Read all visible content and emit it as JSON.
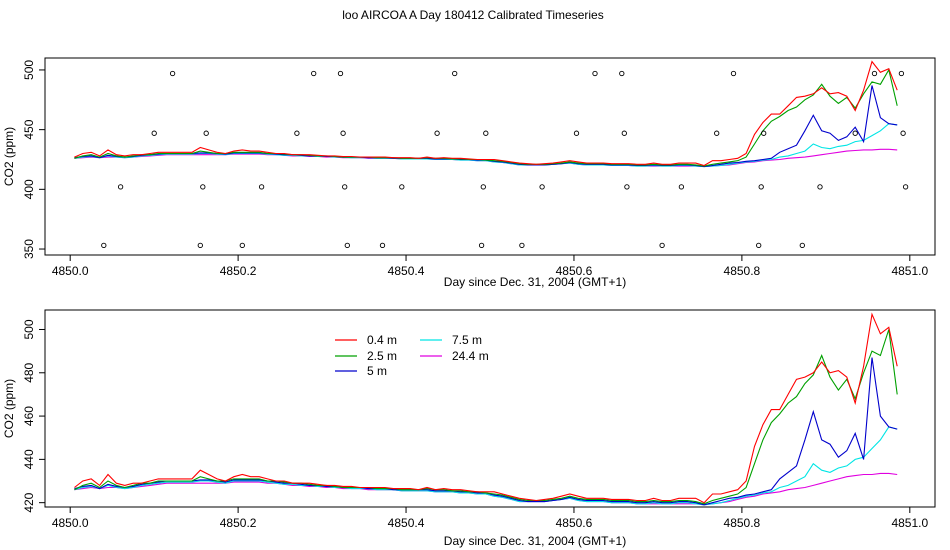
{
  "page": {
    "title": "loo AIRCOA A  Day 180412  Calibrated Timeseries"
  },
  "colors": {
    "0.4 m": "#ff0000",
    "2.5 m": "#00a000",
    "5 m": "#0000cc",
    "7.5 m": "#00e5e5",
    "24.4 m": "#e000e0"
  },
  "chart_data": [
    {
      "type": "line",
      "panel": "top",
      "xlabel": "Day since Dec. 31, 2004 (GMT+1)",
      "ylabel": "CO2 (ppm)",
      "xlim": [
        4849.97,
        4851.03
      ],
      "ylim": [
        345,
        510
      ],
      "xticks": [
        4850.0,
        4850.2,
        4850.4,
        4850.6,
        4850.8,
        4851.0
      ],
      "xtick_labels": [
        "4850.0",
        "4850.2",
        "4850.4",
        "4850.6",
        "4850.8",
        "4851.0"
      ],
      "yticks": [
        350,
        400,
        450,
        500
      ],
      "ytick_labels": [
        "350",
        "400",
        "450",
        "500"
      ],
      "grid": false,
      "legend": "none",
      "x": [
        4850.005,
        4850.015,
        4850.025,
        4850.035,
        4850.045,
        4850.055,
        4850.065,
        4850.075,
        4850.085,
        4850.095,
        4850.105,
        4850.115,
        4850.125,
        4850.135,
        4850.145,
        4850.155,
        4850.165,
        4850.175,
        4850.185,
        4850.195,
        4850.205,
        4850.215,
        4850.225,
        4850.235,
        4850.245,
        4850.255,
        4850.265,
        4850.275,
        4850.285,
        4850.295,
        4850.305,
        4850.315,
        4850.325,
        4850.335,
        4850.345,
        4850.355,
        4850.365,
        4850.375,
        4850.385,
        4850.395,
        4850.405,
        4850.415,
        4850.425,
        4850.435,
        4850.445,
        4850.455,
        4850.465,
        4850.475,
        4850.485,
        4850.495,
        4850.505,
        4850.515,
        4850.525,
        4850.535,
        4850.545,
        4850.555,
        4850.565,
        4850.575,
        4850.585,
        4850.595,
        4850.605,
        4850.615,
        4850.625,
        4850.635,
        4850.645,
        4850.655,
        4850.665,
        4850.675,
        4850.685,
        4850.695,
        4850.705,
        4850.715,
        4850.725,
        4850.735,
        4850.745,
        4850.755,
        4850.765,
        4850.775,
        4850.785,
        4850.795,
        4850.805,
        4850.815,
        4850.825,
        4850.835,
        4850.845,
        4850.855,
        4850.865,
        4850.875,
        4850.885,
        4850.895,
        4850.905,
        4850.915,
        4850.925,
        4850.935,
        4850.945,
        4850.955,
        4850.965,
        4850.975,
        4850.985
      ],
      "series": [
        {
          "name": "0.4 m",
          "values": [
            427.0,
            430.0,
            431.0,
            428.0,
            433.0,
            429.0,
            428.0,
            429.0,
            429.0,
            430.0,
            431.0,
            431.0,
            431.0,
            431.0,
            431.0,
            435.0,
            433.0,
            431.0,
            430.0,
            432.0,
            433.0,
            432.0,
            432.0,
            431.0,
            430.0,
            430.0,
            429.0,
            429.0,
            429.0,
            428.5,
            428.0,
            428.0,
            427.5,
            427.5,
            427.0,
            427.0,
            427.0,
            427.0,
            426.5,
            426.5,
            426.5,
            426.0,
            427.0,
            426.0,
            426.5,
            426.0,
            426.0,
            425.5,
            425.0,
            425.0,
            425.0,
            424.0,
            423.0,
            422.0,
            421.5,
            421.0,
            421.5,
            422.0,
            423.0,
            424.0,
            423.0,
            422.0,
            422.0,
            422.0,
            421.5,
            421.5,
            421.5,
            421.0,
            421.0,
            422.0,
            421.0,
            421.0,
            422.0,
            422.0,
            422.0,
            420.0,
            424.0,
            424.0,
            425.0,
            426.0,
            430.0,
            446.0,
            456.0,
            463.0,
            463.0,
            470.0,
            477.0,
            478.0,
            480.0,
            485.0,
            480.0,
            481.0,
            478.0,
            466.0,
            483.0,
            507.0,
            498.0,
            501.0,
            483.0
          ]
        },
        {
          "name": "2.5 m",
          "values": [
            426.0,
            428.0,
            429.0,
            427.0,
            430.0,
            428.0,
            427.0,
            428.0,
            429.0,
            429.0,
            430.0,
            430.0,
            430.0,
            430.0,
            430.0,
            432.0,
            431.0,
            430.0,
            430.0,
            431.0,
            431.0,
            431.0,
            431.0,
            430.0,
            430.0,
            429.5,
            429.0,
            429.0,
            428.5,
            428.0,
            428.0,
            427.5,
            427.0,
            427.0,
            427.0,
            427.0,
            426.5,
            426.5,
            426.5,
            426.0,
            426.0,
            426.0,
            426.5,
            426.0,
            426.0,
            425.5,
            425.5,
            425.0,
            425.0,
            424.5,
            424.0,
            423.5,
            422.5,
            421.5,
            421.0,
            421.0,
            421.0,
            421.5,
            422.0,
            423.0,
            422.0,
            421.5,
            421.5,
            421.5,
            421.0,
            421.0,
            421.0,
            420.5,
            420.5,
            421.0,
            420.5,
            420.5,
            421.0,
            421.0,
            420.5,
            419.5,
            421.0,
            422.0,
            423.0,
            424.0,
            427.0,
            438.0,
            449.0,
            457.0,
            461.0,
            466.0,
            469.0,
            475.0,
            479.0,
            488.0,
            478.0,
            472.0,
            477.0,
            468.0,
            480.0,
            490.0,
            488.0,
            500.0,
            470.0
          ]
        },
        {
          "name": "5 m",
          "values": [
            426.5,
            427.5,
            428.0,
            426.5,
            428.5,
            427.5,
            427.0,
            427.5,
            428.5,
            429.0,
            429.5,
            430.0,
            430.0,
            430.0,
            430.0,
            430.5,
            430.5,
            430.0,
            429.5,
            430.5,
            430.5,
            430.5,
            430.5,
            430.0,
            429.5,
            429.0,
            429.0,
            428.5,
            428.0,
            428.0,
            427.5,
            427.5,
            427.0,
            427.0,
            427.0,
            426.5,
            426.5,
            426.5,
            426.0,
            426.0,
            426.0,
            426.0,
            426.0,
            425.5,
            425.5,
            425.5,
            425.0,
            425.0,
            424.5,
            424.5,
            423.5,
            423.0,
            422.0,
            421.0,
            420.5,
            420.5,
            420.5,
            421.0,
            421.5,
            422.5,
            421.5,
            421.0,
            421.0,
            421.0,
            420.5,
            420.5,
            420.5,
            420.0,
            420.0,
            420.5,
            420.0,
            420.0,
            420.5,
            420.5,
            420.0,
            419.0,
            420.0,
            421.0,
            422.0,
            422.5,
            423.5,
            424.0,
            425.0,
            426.0,
            431.0,
            434.0,
            437.0,
            449.0,
            462.0,
            449.0,
            447.0,
            441.0,
            444.0,
            452.0,
            440.0,
            487.0,
            460.0,
            455.0,
            454.0
          ]
        },
        {
          "name": "7.5 m",
          "values": [
            426.0,
            427.0,
            427.5,
            426.5,
            428.0,
            427.0,
            426.5,
            427.0,
            428.0,
            428.5,
            429.0,
            429.5,
            429.5,
            429.5,
            429.5,
            430.0,
            430.0,
            429.5,
            429.0,
            430.0,
            430.0,
            430.0,
            430.0,
            429.5,
            429.0,
            428.5,
            428.5,
            428.0,
            428.0,
            427.5,
            427.5,
            427.0,
            427.0,
            426.5,
            426.5,
            426.5,
            426.0,
            426.0,
            426.0,
            425.5,
            425.5,
            425.5,
            425.5,
            425.0,
            425.0,
            425.0,
            424.5,
            424.5,
            424.0,
            424.0,
            423.0,
            422.5,
            421.5,
            420.5,
            420.5,
            420.5,
            420.5,
            421.0,
            421.5,
            422.0,
            421.0,
            420.5,
            420.5,
            420.5,
            420.0,
            420.0,
            420.0,
            419.5,
            419.5,
            420.0,
            419.5,
            419.5,
            420.0,
            420.0,
            419.5,
            419.0,
            419.5,
            420.0,
            421.0,
            422.0,
            423.0,
            423.5,
            424.5,
            425.0,
            427.0,
            428.0,
            430.0,
            432.0,
            438.0,
            435.0,
            434.0,
            436.0,
            437.0,
            440.0,
            441.0,
            445.0,
            449.0,
            455.0,
            454.0
          ]
        },
        {
          "name": "24.4 m",
          "values": [
            426.0,
            426.5,
            427.0,
            426.5,
            427.0,
            427.0,
            426.5,
            427.0,
            427.5,
            428.0,
            428.5,
            429.0,
            429.0,
            429.0,
            429.0,
            429.0,
            429.0,
            429.0,
            429.0,
            429.5,
            429.5,
            429.5,
            429.5,
            429.0,
            429.0,
            428.5,
            428.0,
            428.0,
            427.5,
            427.5,
            427.0,
            427.0,
            426.5,
            426.5,
            426.5,
            426.0,
            426.0,
            426.0,
            426.0,
            425.5,
            425.5,
            425.5,
            425.5,
            425.0,
            425.0,
            425.0,
            424.5,
            424.5,
            424.0,
            424.0,
            423.0,
            422.5,
            421.5,
            420.5,
            420.5,
            420.5,
            420.5,
            421.0,
            421.5,
            422.0,
            421.0,
            420.5,
            420.5,
            420.5,
            420.0,
            420.0,
            420.0,
            419.5,
            419.5,
            419.5,
            419.5,
            419.5,
            419.5,
            419.5,
            419.5,
            419.0,
            419.5,
            420.0,
            420.5,
            421.5,
            422.5,
            423.0,
            424.0,
            424.5,
            425.0,
            426.0,
            426.5,
            427.0,
            428.0,
            429.0,
            430.0,
            431.0,
            432.0,
            432.5,
            433.0,
            433.0,
            433.5,
            433.5,
            433.0
          ]
        }
      ],
      "markers": {
        "x": [
          4850.04,
          4850.06,
          4850.1,
          4850.122,
          4850.155,
          4850.158,
          4850.162,
          4850.205,
          4850.228,
          4850.27,
          4850.29,
          4850.322,
          4850.325,
          4850.327,
          4850.33,
          4850.372,
          4850.395,
          4850.437,
          4850.458,
          4850.49,
          4850.492,
          4850.495,
          4850.538,
          4850.562,
          4850.603,
          4850.625,
          4850.657,
          4850.66,
          4850.663,
          4850.705,
          4850.728,
          4850.77,
          4850.79,
          4850.82,
          4850.823,
          4850.826,
          4850.872,
          4850.893,
          4850.935,
          4850.958,
          4850.99,
          4850.992,
          4850.995
        ],
        "y": [
          353,
          402,
          447,
          497,
          353,
          402,
          447,
          353,
          402,
          447,
          497,
          497,
          447,
          402,
          353,
          353,
          402,
          447,
          497,
          353,
          402,
          447,
          353,
          402,
          447,
          497,
          497,
          447,
          402,
          353,
          402,
          447,
          497,
          353,
          402,
          447,
          353,
          402,
          447,
          497,
          497,
          447,
          402
        ]
      }
    },
    {
      "type": "line",
      "panel": "bottom",
      "xlabel": "Day since Dec. 31, 2004 (GMT+1)",
      "ylabel": "CO2 (ppm)",
      "xlim": [
        4849.97,
        4851.03
      ],
      "ylim": [
        418,
        509
      ],
      "xticks": [
        4850.0,
        4850.2,
        4850.4,
        4850.6,
        4850.8,
        4851.0
      ],
      "xtick_labels": [
        "4850.0",
        "4850.2",
        "4850.4",
        "4850.6",
        "4850.8",
        "4851.0"
      ],
      "yticks": [
        420,
        440,
        460,
        480,
        500
      ],
      "ytick_labels": [
        "420",
        "440",
        "460",
        "480",
        "500"
      ],
      "grid": false,
      "legend": "top-center",
      "legend_entries": [
        "0.4 m",
        "2.5 m",
        "5 m",
        "7.5 m",
        "24.4 m"
      ],
      "same_series_as_panel": "top"
    }
  ]
}
